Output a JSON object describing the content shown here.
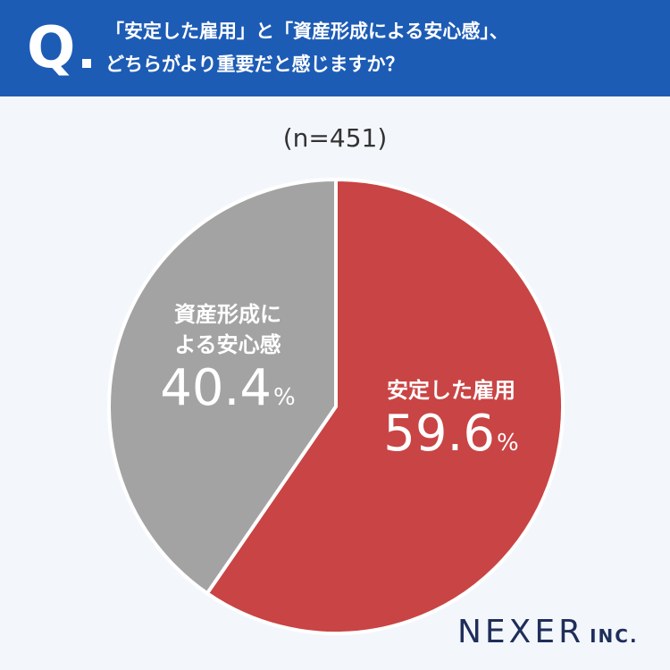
{
  "header": {
    "q_mark": "Q",
    "question_lines": [
      "「安定した雇用」と「資産形成による安心感」、",
      "どちらがより重要だと感じますか？"
    ]
  },
  "sample": "(n=451)",
  "chart_data": {
    "type": "pie",
    "slices": [
      {
        "label": "安定した雇用",
        "value": 59.6,
        "pct_text": "59.6",
        "color": "#c94444"
      },
      {
        "label_lines": [
          "資産形成に",
          "よる安心感"
        ],
        "value": 40.4,
        "pct_text": "40.4",
        "color": "#a3a3a3"
      }
    ],
    "unit": "%",
    "start": "12 o'clock",
    "direction": "clockwise"
  },
  "logo": {
    "main": "NEXER",
    "sub": "INC."
  },
  "colors": {
    "header_bg": "#1d5cb5",
    "background": "#f3f7fc"
  }
}
